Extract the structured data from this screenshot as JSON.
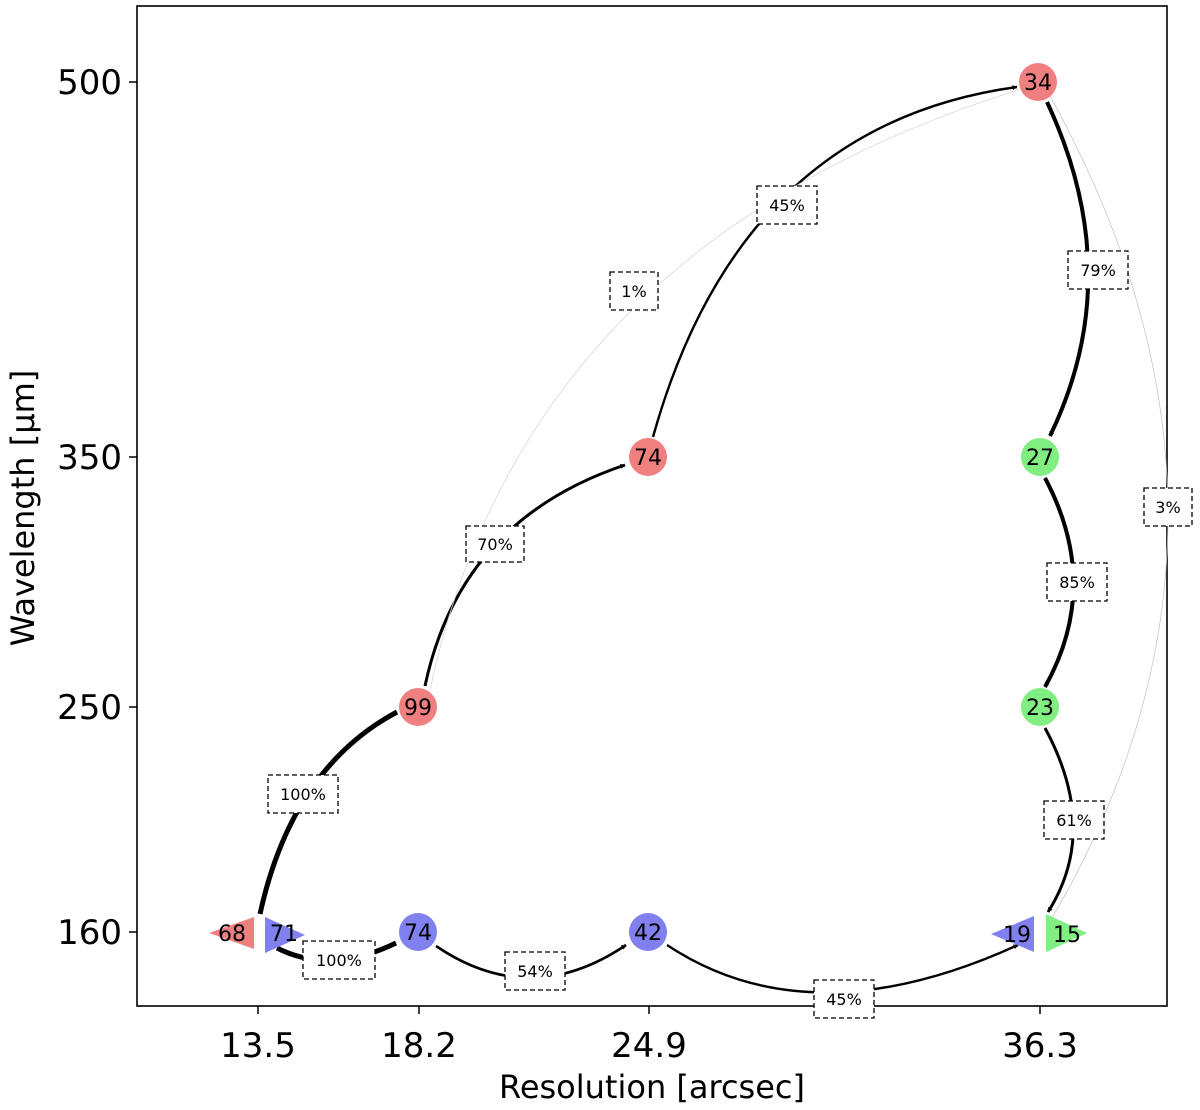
{
  "axes": {
    "xlabel": "Resolution [arcsec]",
    "ylabel": "Wavelength [μm]",
    "xticks": [
      "13.5",
      "18.2",
      "24.9",
      "36.3"
    ],
    "yticks": [
      "500",
      "350",
      "250",
      "160"
    ]
  },
  "colors": {
    "red": "#f08080",
    "green": "#80ee80",
    "blue": "#8080ee"
  },
  "nodes": {
    "r500": {
      "label": "34",
      "color": "red",
      "shape": "circle"
    },
    "r350": {
      "label": "74",
      "color": "red",
      "shape": "circle"
    },
    "r250": {
      "label": "99",
      "color": "red",
      "shape": "circle"
    },
    "r160": {
      "label": "68",
      "color": "red",
      "shape": "triangle-left"
    },
    "b160a": {
      "label": "71",
      "color": "blue",
      "shape": "triangle-right"
    },
    "b182": {
      "label": "74",
      "color": "blue",
      "shape": "circle"
    },
    "b249": {
      "label": "42",
      "color": "blue",
      "shape": "circle"
    },
    "b363": {
      "label": "19",
      "color": "blue",
      "shape": "triangle-left"
    },
    "g350": {
      "label": "27",
      "color": "green",
      "shape": "circle"
    },
    "g250": {
      "label": "23",
      "color": "green",
      "shape": "circle"
    },
    "g160": {
      "label": "15",
      "color": "green",
      "shape": "triangle-right"
    }
  },
  "edges": [
    {
      "from": "r160",
      "to": "r250",
      "label": "100%"
    },
    {
      "from": "r250",
      "to": "r350",
      "label": "70%"
    },
    {
      "from": "r350",
      "to": "r500",
      "label": "45%"
    },
    {
      "from": "r250",
      "to": "r500",
      "label": "1%"
    },
    {
      "from": "b160a",
      "to": "b182",
      "label": "100%"
    },
    {
      "from": "b182",
      "to": "b249",
      "label": "54%"
    },
    {
      "from": "b249",
      "to": "b363",
      "label": "45%"
    },
    {
      "from": "r500",
      "to": "g350",
      "label": "79%"
    },
    {
      "from": "g350",
      "to": "g250",
      "label": "85%"
    },
    {
      "from": "g250",
      "to": "g160",
      "label": "61%"
    },
    {
      "from": "r500",
      "to": "g160",
      "label": "3%"
    }
  ]
}
